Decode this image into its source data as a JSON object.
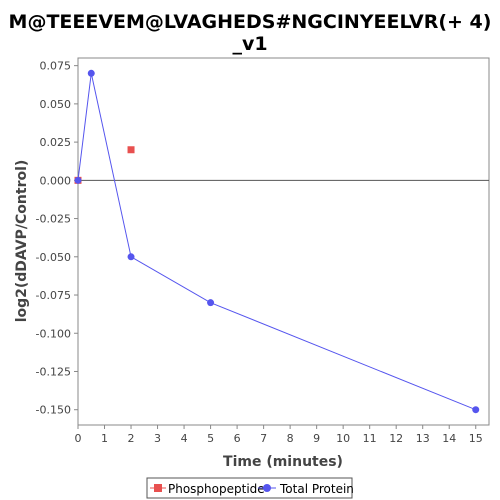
{
  "chart_data": {
    "type": "line",
    "title_line1": "M@TEEEVEM@LVAGHEDS#NGCINYEELVR(+ 4)",
    "title_line2": "_v1",
    "xlabel": "Time (minutes)",
    "ylabel": "log2(dDAVP/Control)",
    "xlim": [
      0,
      15.5
    ],
    "ylim": [
      -0.16,
      0.08
    ],
    "xticks": [
      0,
      1,
      2,
      3,
      4,
      5,
      6,
      7,
      8,
      9,
      10,
      11,
      12,
      13,
      14,
      15
    ],
    "yticks": [
      0.075,
      0.05,
      0.025,
      0.0,
      -0.025,
      -0.05,
      -0.075,
      -0.1,
      -0.125,
      -0.15
    ],
    "ytick_labels": [
      "0.075",
      "0.050",
      "0.025",
      "0.000",
      "-0.025",
      "-0.050",
      "-0.075",
      "-0.100",
      "-0.125",
      "-0.150"
    ],
    "zero_line": true,
    "legend_position": "bottom",
    "series": [
      {
        "name": "Phosphopeptide",
        "color": "#e8504f",
        "marker": "square",
        "line": false,
        "points": [
          [
            0,
            0.0
          ],
          [
            2,
            0.02
          ]
        ]
      },
      {
        "name": "Total Protein",
        "color": "#5555ee",
        "marker": "circle",
        "line": true,
        "points": [
          [
            0,
            0.0
          ],
          [
            0.5,
            0.07
          ],
          [
            2,
            -0.05
          ],
          [
            5,
            -0.08
          ],
          [
            15,
            -0.15
          ]
        ]
      }
    ]
  }
}
